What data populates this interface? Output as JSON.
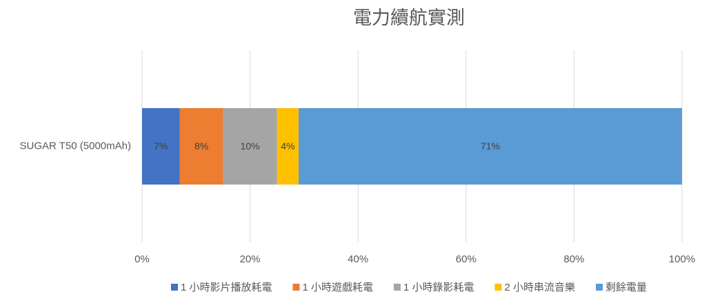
{
  "chart_data": {
    "type": "stacked_bar_horizontal",
    "title": "電力續航實測",
    "categories": [
      "SUGAR T50 (5000mAh)"
    ],
    "series": [
      {
        "name": "1 小時影片播放耗電",
        "color": "#4472c4",
        "values": [
          7
        ],
        "value_labels": [
          "7%"
        ]
      },
      {
        "name": "1 小時遊戲耗電",
        "color": "#ed7d31",
        "values": [
          8
        ],
        "value_labels": [
          "8%"
        ]
      },
      {
        "name": "1 小時錄影耗電",
        "color": "#a5a5a5",
        "values": [
          10
        ],
        "value_labels": [
          "10%"
        ]
      },
      {
        "name": "2 小時串流音樂",
        "color": "#ffc000",
        "values": [
          4
        ],
        "value_labels": [
          "4%"
        ]
      },
      {
        "name": "剩餘電量",
        "color": "#5b9bd5",
        "values": [
          71
        ],
        "value_labels": [
          "71%"
        ]
      }
    ],
    "xlim": [
      0,
      100
    ],
    "xticks": [
      {
        "value": 0,
        "label": "0%"
      },
      {
        "value": 20,
        "label": "20%"
      },
      {
        "value": 40,
        "label": "40%"
      },
      {
        "value": 60,
        "label": "60%"
      },
      {
        "value": 80,
        "label": "80%"
      },
      {
        "value": 100,
        "label": "100%"
      }
    ],
    "grid": true,
    "legend": "bottom"
  }
}
